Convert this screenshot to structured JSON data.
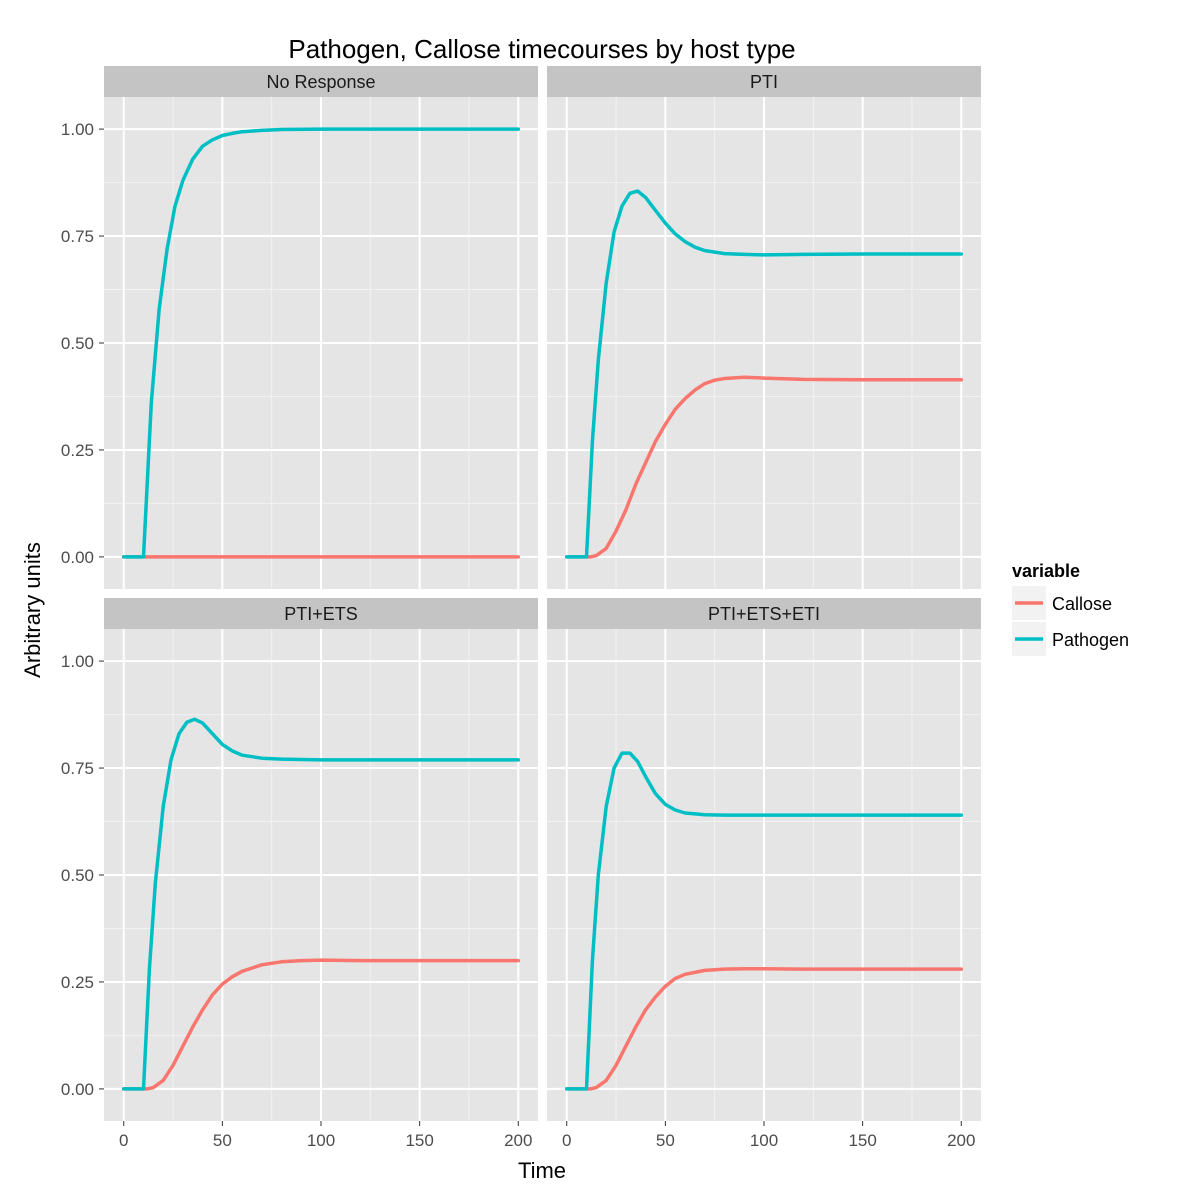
{
  "chart_data": {
    "type": "line",
    "title": "Pathogen, Callose timecourses by host type",
    "xlabel": "Time",
    "ylabel": "Arbitrary units",
    "xlim": [
      -10,
      210
    ],
    "ylim": [
      -0.075,
      1.075
    ],
    "x_ticks": [
      0,
      50,
      100,
      150,
      200
    ],
    "x_tick_labels": [
      "0",
      "50",
      "100",
      "150",
      "200"
    ],
    "y_ticks": [
      0,
      0.25,
      0.5,
      0.75,
      1.0
    ],
    "y_tick_labels": [
      "0.00",
      "0.25",
      "0.50",
      "0.75",
      "1.00"
    ],
    "grid": true,
    "legend": {
      "title": "variable",
      "position": "right",
      "entries": [
        {
          "name": "Callose",
          "color": "#F8766D"
        },
        {
          "name": "Pathogen",
          "color": "#00BFC4"
        }
      ]
    },
    "facets": [
      {
        "label": "No Response",
        "series": [
          {
            "name": "Callose",
            "x": [
              0,
              200
            ],
            "values": [
              0,
              0
            ]
          },
          {
            "name": "Pathogen",
            "x": [
              0,
              10,
              14,
              18,
              22,
              26,
              30,
              35,
              40,
              45,
              50,
              55,
              60,
              70,
              80,
              100,
              120,
              150,
              200
            ],
            "values": [
              0,
              0,
              0.36,
              0.58,
              0.72,
              0.82,
              0.88,
              0.93,
              0.96,
              0.975,
              0.985,
              0.99,
              0.994,
              0.997,
              0.999,
              1.0,
              1.0,
              1.0,
              1.0
            ]
          }
        ]
      },
      {
        "label": "PTI",
        "series": [
          {
            "name": "Callose",
            "x": [
              0,
              10,
              12,
              15,
              20,
              25,
              30,
              35,
              40,
              45,
              50,
              55,
              60,
              65,
              70,
              75,
              80,
              90,
              100,
              120,
              150,
              200
            ],
            "values": [
              0,
              0,
              0.0,
              0.003,
              0.02,
              0.06,
              0.11,
              0.17,
              0.22,
              0.27,
              0.31,
              0.345,
              0.37,
              0.39,
              0.405,
              0.413,
              0.417,
              0.42,
              0.418,
              0.415,
              0.414,
              0.414
            ]
          },
          {
            "name": "Pathogen",
            "x": [
              0,
              10,
              13,
              16,
              20,
              24,
              28,
              32,
              36,
              40,
              45,
              50,
              55,
              60,
              65,
              70,
              80,
              90,
              100,
              120,
              150,
              200
            ],
            "values": [
              0,
              0,
              0.27,
              0.46,
              0.64,
              0.76,
              0.82,
              0.85,
              0.855,
              0.84,
              0.81,
              0.78,
              0.755,
              0.737,
              0.724,
              0.716,
              0.709,
              0.707,
              0.706,
              0.707,
              0.708,
              0.708
            ]
          }
        ]
      },
      {
        "label": "PTI+ETS",
        "series": [
          {
            "name": "Callose",
            "x": [
              0,
              10,
              12,
              15,
              20,
              25,
              30,
              35,
              40,
              45,
              50,
              55,
              60,
              70,
              80,
              90,
              100,
              120,
              150,
              200
            ],
            "values": [
              0,
              0,
              0.0,
              0.003,
              0.02,
              0.055,
              0.1,
              0.145,
              0.185,
              0.22,
              0.245,
              0.262,
              0.275,
              0.29,
              0.297,
              0.3,
              0.301,
              0.3,
              0.3,
              0.3
            ]
          },
          {
            "name": "Pathogen",
            "x": [
              0,
              10,
              13,
              16,
              20,
              24,
              28,
              32,
              36,
              40,
              45,
              50,
              55,
              60,
              70,
              80,
              90,
              100,
              120,
              150,
              200
            ],
            "values": [
              0,
              0,
              0.28,
              0.48,
              0.66,
              0.77,
              0.83,
              0.857,
              0.864,
              0.855,
              0.83,
              0.805,
              0.79,
              0.78,
              0.773,
              0.771,
              0.77,
              0.769,
              0.769,
              0.769,
              0.769
            ]
          }
        ]
      },
      {
        "label": "PTI+ETS+ETI",
        "series": [
          {
            "name": "Callose",
            "x": [
              0,
              10,
              12,
              15,
              20,
              25,
              30,
              35,
              40,
              45,
              50,
              55,
              60,
              70,
              80,
              90,
              100,
              120,
              150,
              200
            ],
            "values": [
              0,
              0,
              0.0,
              0.003,
              0.02,
              0.055,
              0.1,
              0.145,
              0.185,
              0.215,
              0.24,
              0.258,
              0.268,
              0.277,
              0.28,
              0.281,
              0.281,
              0.28,
              0.28,
              0.28
            ]
          },
          {
            "name": "Pathogen",
            "x": [
              0,
              10,
              13,
              16,
              20,
              24,
              28,
              32,
              36,
              40,
              45,
              50,
              55,
              60,
              70,
              80,
              90,
              100,
              120,
              150,
              200
            ],
            "values": [
              0,
              0,
              0.3,
              0.5,
              0.66,
              0.75,
              0.785,
              0.785,
              0.765,
              0.73,
              0.69,
              0.665,
              0.652,
              0.645,
              0.641,
              0.64,
              0.64,
              0.64,
              0.64,
              0.64,
              0.64
            ]
          }
        ]
      }
    ]
  }
}
